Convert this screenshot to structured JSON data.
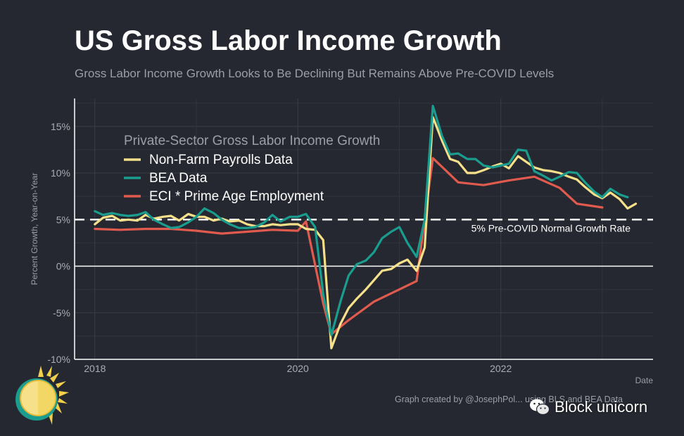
{
  "header": {
    "title": "US Gross Labor Income Growth",
    "subtitle": "Gross Labor Income Growth Looks to Be Declining But Remains Above Pre-COVID Levels"
  },
  "footer": {
    "credit": "Graph created by @JosephPol... using BLS and BEA Data",
    "watermark_text": "Block unicorn"
  },
  "chart_data": {
    "type": "line",
    "ylabel": "Percent Growth, Year-on-Year",
    "xlabel": "Date",
    "x_range": [
      2017.8,
      2023.5
    ],
    "ylim": [
      -10,
      18
    ],
    "x_ticks": [
      {
        "value": 2018,
        "label": "2018"
      },
      {
        "value": 2020,
        "label": "2020"
      },
      {
        "value": 2022,
        "label": "2022"
      }
    ],
    "y_ticks": [
      {
        "value": 15,
        "label": "15%"
      },
      {
        "value": 10,
        "label": "10%"
      },
      {
        "value": 5,
        "label": "5%"
      },
      {
        "value": 0,
        "label": "0%"
      },
      {
        "value": -5,
        "label": "-5%"
      },
      {
        "value": -10,
        "label": "-10%"
      }
    ],
    "grid": true,
    "legend": {
      "title": "Private-Sector Gross Labor Income Growth",
      "placement": "top-left"
    },
    "reference_lines": [
      {
        "y": 5,
        "label": "5% Pre-COVID Normal Growth Rate",
        "style": "dashed",
        "color": "#ffffff"
      },
      {
        "y": 0,
        "label": "",
        "style": "solid",
        "color": "#ffffff"
      }
    ],
    "series": [
      {
        "name": "Non-Farm Payrolls Data",
        "color": "#f6e08a",
        "points": [
          [
            2018.0,
            4.5
          ],
          [
            2018.08,
            5.2
          ],
          [
            2018.17,
            5.4
          ],
          [
            2018.25,
            4.9
          ],
          [
            2018.33,
            5.0
          ],
          [
            2018.42,
            4.9
          ],
          [
            2018.5,
            5.5
          ],
          [
            2018.58,
            5.1
          ],
          [
            2018.67,
            5.3
          ],
          [
            2018.75,
            5.4
          ],
          [
            2018.83,
            4.9
          ],
          [
            2018.92,
            5.6
          ],
          [
            2019.0,
            5.3
          ],
          [
            2019.08,
            5.3
          ],
          [
            2019.17,
            4.9
          ],
          [
            2019.25,
            5.1
          ],
          [
            2019.33,
            4.8
          ],
          [
            2019.42,
            4.9
          ],
          [
            2019.5,
            4.5
          ],
          [
            2019.58,
            4.3
          ],
          [
            2019.67,
            4.3
          ],
          [
            2019.75,
            4.5
          ],
          [
            2019.83,
            4.4
          ],
          [
            2019.92,
            4.5
          ],
          [
            2020.0,
            4.5
          ],
          [
            2020.08,
            4.0
          ],
          [
            2020.17,
            3.9
          ],
          [
            2020.25,
            2.8
          ],
          [
            2020.33,
            -8.8
          ],
          [
            2020.42,
            -6.2
          ],
          [
            2020.5,
            -4.5
          ],
          [
            2020.58,
            -3.5
          ],
          [
            2020.67,
            -2.5
          ],
          [
            2020.75,
            -1.5
          ],
          [
            2020.83,
            -0.5
          ],
          [
            2020.92,
            -0.3
          ],
          [
            2021.0,
            0.3
          ],
          [
            2021.08,
            0.7
          ],
          [
            2021.17,
            -0.5
          ],
          [
            2021.25,
            2.0
          ],
          [
            2021.33,
            16.0
          ],
          [
            2021.42,
            13.5
          ],
          [
            2021.5,
            11.5
          ],
          [
            2021.58,
            11.2
          ],
          [
            2021.67,
            10.0
          ],
          [
            2021.75,
            10.0
          ],
          [
            2021.83,
            10.3
          ],
          [
            2021.92,
            10.7
          ],
          [
            2022.0,
            11.0
          ],
          [
            2022.08,
            10.5
          ],
          [
            2022.17,
            11.8
          ],
          [
            2022.25,
            11.2
          ],
          [
            2022.33,
            10.6
          ],
          [
            2022.42,
            10.3
          ],
          [
            2022.5,
            10.2
          ],
          [
            2022.58,
            10.0
          ],
          [
            2022.67,
            9.6
          ],
          [
            2022.75,
            9.3
          ],
          [
            2022.83,
            8.5
          ],
          [
            2022.92,
            7.7
          ],
          [
            2023.0,
            7.3
          ],
          [
            2023.08,
            7.9
          ],
          [
            2023.17,
            7.2
          ],
          [
            2023.25,
            6.2
          ],
          [
            2023.33,
            6.7
          ]
        ]
      },
      {
        "name": "BEA Data",
        "color": "#1a9c8e",
        "points": [
          [
            2018.0,
            5.9
          ],
          [
            2018.08,
            5.5
          ],
          [
            2018.17,
            5.7
          ],
          [
            2018.25,
            5.5
          ],
          [
            2018.33,
            5.4
          ],
          [
            2018.42,
            5.5
          ],
          [
            2018.5,
            5.8
          ],
          [
            2018.58,
            5.0
          ],
          [
            2018.67,
            4.5
          ],
          [
            2018.75,
            4.1
          ],
          [
            2018.83,
            4.2
          ],
          [
            2018.92,
            4.7
          ],
          [
            2019.0,
            5.3
          ],
          [
            2019.08,
            6.2
          ],
          [
            2019.17,
            5.7
          ],
          [
            2019.25,
            5.0
          ],
          [
            2019.33,
            4.5
          ],
          [
            2019.42,
            4.1
          ],
          [
            2019.5,
            4.1
          ],
          [
            2019.58,
            4.2
          ],
          [
            2019.67,
            4.7
          ],
          [
            2019.75,
            5.5
          ],
          [
            2019.83,
            4.8
          ],
          [
            2019.92,
            5.3
          ],
          [
            2020.0,
            5.3
          ],
          [
            2020.08,
            5.6
          ],
          [
            2020.17,
            4.2
          ],
          [
            2020.25,
            -3.0
          ],
          [
            2020.33,
            -7.4
          ],
          [
            2020.42,
            -3.8
          ],
          [
            2020.5,
            -1.0
          ],
          [
            2020.58,
            0.2
          ],
          [
            2020.67,
            0.6
          ],
          [
            2020.75,
            1.5
          ],
          [
            2020.83,
            3.0
          ],
          [
            2020.92,
            3.7
          ],
          [
            2021.0,
            4.2
          ],
          [
            2021.08,
            2.5
          ],
          [
            2021.17,
            1.0
          ],
          [
            2021.25,
            5.0
          ],
          [
            2021.33,
            17.2
          ],
          [
            2021.42,
            14.0
          ],
          [
            2021.5,
            12.0
          ],
          [
            2021.58,
            12.1
          ],
          [
            2021.67,
            11.5
          ],
          [
            2021.75,
            11.5
          ],
          [
            2021.83,
            10.8
          ],
          [
            2021.92,
            10.6
          ],
          [
            2022.0,
            10.8
          ],
          [
            2022.08,
            11.0
          ],
          [
            2022.17,
            12.5
          ],
          [
            2022.25,
            12.4
          ],
          [
            2022.33,
            10.2
          ],
          [
            2022.42,
            9.7
          ],
          [
            2022.5,
            9.2
          ],
          [
            2022.58,
            9.6
          ],
          [
            2022.67,
            10.1
          ],
          [
            2022.75,
            10.0
          ],
          [
            2022.83,
            9.0
          ],
          [
            2022.92,
            8.0
          ],
          [
            2023.0,
            7.4
          ],
          [
            2023.08,
            8.3
          ],
          [
            2023.17,
            7.7
          ],
          [
            2023.25,
            7.4
          ]
        ]
      },
      {
        "name": "ECI * Prime Age Employment",
        "color": "#e05a4e",
        "points": [
          [
            2018.0,
            4.0
          ],
          [
            2018.25,
            3.9
          ],
          [
            2018.5,
            4.0
          ],
          [
            2018.75,
            4.0
          ],
          [
            2019.0,
            3.8
          ],
          [
            2019.25,
            3.5
          ],
          [
            2019.5,
            3.7
          ],
          [
            2019.75,
            3.9
          ],
          [
            2020.0,
            3.8
          ],
          [
            2020.08,
            4.8
          ],
          [
            2020.25,
            -4.0
          ],
          [
            2020.33,
            -7.3
          ],
          [
            2020.5,
            -5.8
          ],
          [
            2020.75,
            -3.8
          ],
          [
            2021.0,
            -2.5
          ],
          [
            2021.17,
            -1.6
          ],
          [
            2021.33,
            11.6
          ],
          [
            2021.58,
            9.0
          ],
          [
            2021.83,
            8.7
          ],
          [
            2022.08,
            9.2
          ],
          [
            2022.33,
            9.6
          ],
          [
            2022.58,
            8.4
          ],
          [
            2022.75,
            6.7
          ],
          [
            2023.0,
            6.3
          ]
        ]
      }
    ]
  }
}
